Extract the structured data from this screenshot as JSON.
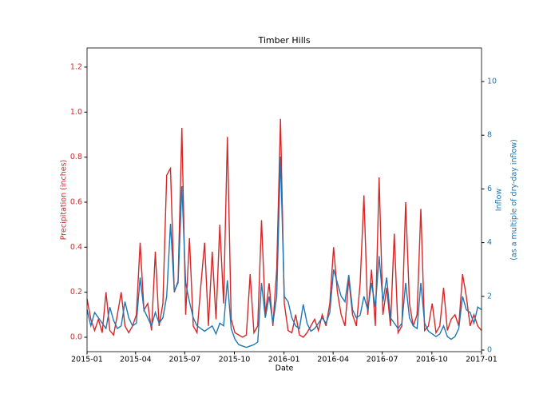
{
  "chart_data": {
    "type": "line",
    "title": "Timber Hills",
    "xlabel": "Date",
    "ylabel": "Precipitation (inches)",
    "y2label": [
      "Inflow",
      "(as a multiple of dry-day inflow)"
    ],
    "xlim": [
      0,
      731
    ],
    "xticks": [
      {
        "value": 0,
        "label": "2015-01"
      },
      {
        "value": 90,
        "label": "2015-04"
      },
      {
        "value": 181,
        "label": "2015-07"
      },
      {
        "value": 273,
        "label": "2015-10"
      },
      {
        "value": 365,
        "label": "2016-01"
      },
      {
        "value": 456,
        "label": "2016-04"
      },
      {
        "value": 547,
        "label": "2016-07"
      },
      {
        "value": 639,
        "label": "2016-10"
      },
      {
        "value": 731,
        "label": "2017-01"
      }
    ],
    "ylim": [
      -0.064,
      1.285
    ],
    "yticks": [
      {
        "value": 0,
        "label": "0.0"
      },
      0.2,
      0.4,
      0.6,
      0.8,
      {
        "value": 1,
        "label": "1.0"
      },
      1.2
    ],
    "y2lim": [
      -0.06,
      11.25
    ],
    "y2ticks": [
      0,
      2,
      4,
      6,
      8,
      10
    ],
    "series": [
      {
        "name": "Precipitation",
        "color": "#d62728",
        "values": [
          0.17,
          0.08,
          0.03,
          0.08,
          0.02,
          0.2,
          0.03,
          0.01,
          0.1,
          0.2,
          0.05,
          0.02,
          0.05,
          0.1,
          0.42,
          0.12,
          0.15,
          0.03,
          0.38,
          0.05,
          0.15,
          0.72,
          0.75,
          0.2,
          0.25,
          0.93,
          0.1,
          0.44,
          0.05,
          0.02,
          0.23,
          0.42,
          0.05,
          0.38,
          0.08,
          0.5,
          0.15,
          0.89,
          0.08,
          0.02,
          0.01,
          0.0,
          0.01,
          0.28,
          0.02,
          0.05,
          0.52,
          0.1,
          0.24,
          0.05,
          0.3,
          0.97,
          0.15,
          0.03,
          0.02,
          0.1,
          0.01,
          0.0,
          0.02,
          0.05,
          0.08,
          0.03,
          0.1,
          0.05,
          0.15,
          0.4,
          0.2,
          0.1,
          0.05,
          0.26,
          0.1,
          0.05,
          0.24,
          0.63,
          0.1,
          0.3,
          0.05,
          0.71,
          0.1,
          0.22,
          0.05,
          0.46,
          0.02,
          0.05,
          0.6,
          0.15,
          0.05,
          0.1,
          0.57,
          0.03,
          0.05,
          0.15,
          0.02,
          0.05,
          0.22,
          0.03,
          0.08,
          0.1,
          0.05,
          0.28,
          0.18,
          0.05,
          0.1,
          0.05,
          0.03
        ]
      },
      {
        "name": "Inflow",
        "color": "#1f77b4",
        "axis": "y2",
        "values": [
          1.5,
          0.9,
          1.4,
          1.2,
          1.0,
          0.8,
          1.6,
          1.1,
          0.8,
          0.9,
          1.8,
          1.2,
          0.9,
          1.0,
          2.7,
          1.5,
          1.2,
          0.9,
          1.4,
          1.0,
          1.2,
          2.0,
          4.7,
          2.2,
          2.5,
          6.1,
          2.5,
          1.8,
          1.2,
          0.9,
          0.8,
          0.7,
          0.8,
          0.9,
          0.6,
          1.0,
          0.9,
          2.6,
          0.8,
          0.4,
          0.2,
          0.15,
          0.1,
          0.15,
          0.2,
          0.3,
          2.5,
          1.2,
          2.0,
          1.0,
          2.0,
          7.2,
          2.0,
          1.8,
          1.2,
          0.9,
          0.8,
          1.7,
          1.0,
          0.7,
          0.8,
          1.0,
          1.2,
          1.0,
          1.4,
          3.0,
          2.5,
          2.0,
          1.8,
          2.8,
          1.5,
          1.2,
          1.3,
          2.0,
          1.5,
          2.5,
          1.6,
          3.5,
          1.8,
          2.7,
          1.2,
          1.0,
          0.8,
          1.0,
          2.5,
          1.2,
          0.9,
          0.8,
          2.5,
          1.0,
          0.7,
          0.6,
          0.5,
          0.6,
          0.9,
          0.5,
          0.4,
          0.5,
          0.8,
          2.0,
          1.5,
          1.4,
          1.0,
          1.6,
          1.5
        ]
      }
    ]
  }
}
